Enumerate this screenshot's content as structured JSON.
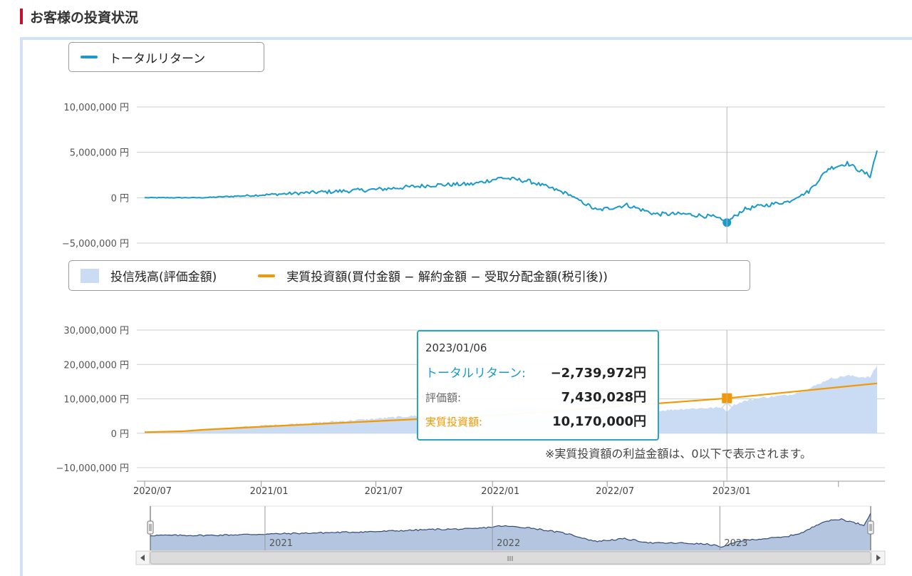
{
  "section": {
    "title": "お客様の投資状況"
  },
  "colors": {
    "accent_red": "#c8102e",
    "total_return": "#1a9acb",
    "valuation_area": "#c9dcf3",
    "invested": "#f39800",
    "navigator_fill": "#b4c6df",
    "navigator_line": "#33497a"
  },
  "legend_top": {
    "total_return": "トータルリターン"
  },
  "legend_bottom": {
    "valuation": "投信残高(評価金額)",
    "invested": "実質投資額(買付金額 − 解約金額 − 受取分配金額(税引後))"
  },
  "tooltip": {
    "date": "2023/01/06",
    "total_return_label": "トータルリターン:",
    "total_return_value": "−2,739,972円",
    "valuation_label": "評価額:",
    "valuation_value": "7,430,028円",
    "invested_label": "実質投資額:",
    "invested_value": "10,170,000円"
  },
  "note": "※実質投資額の利益金額は、0以下で表示されます。",
  "navigator": {
    "year_labels": [
      "2021",
      "2022",
      "2023"
    ],
    "scroll_grip": "III"
  },
  "chart_data": [
    {
      "type": "line",
      "x_range": [
        "2020/07/01",
        "2023/08/31"
      ],
      "y_ticks": [
        "10,000,000 円",
        "5,000,000 円",
        "0 円",
        "−5,000,000 円"
      ],
      "ylim": [
        -5000000,
        10000000
      ],
      "grid": true,
      "legend": "top-left",
      "highlight": {
        "x": "2023/01/06",
        "y": -2739972
      },
      "series": [
        {
          "name": "トータルリターン",
          "x": [
            "2020/07/01",
            "2020/10/01",
            "2021/01/01",
            "2021/04/01",
            "2021/07/01",
            "2021/10/01",
            "2021/12/01",
            "2022/01/15",
            "2022/03/01",
            "2022/05/01",
            "2022/06/15",
            "2022/08/01",
            "2022/09/15",
            "2022/11/01",
            "2022/12/15",
            "2023/01/06",
            "2023/02/01",
            "2023/03/01",
            "2023/04/15",
            "2023/05/15",
            "2023/06/15",
            "2023/07/15",
            "2023/08/01",
            "2023/08/20",
            "2023/08/31"
          ],
          "values": [
            0,
            0,
            300000,
            600000,
            900000,
            1400000,
            1500000,
            2200000,
            1800000,
            400000,
            -1400000,
            -800000,
            -1800000,
            -1800000,
            -2100000,
            -2739972,
            -1300000,
            -900000,
            -400000,
            700000,
            3200000,
            3800000,
            3100000,
            2400000,
            5200000
          ]
        }
      ]
    },
    {
      "type": "area",
      "x_range": [
        "2020/07/01",
        "2023/08/31"
      ],
      "x_ticks": [
        "2020/07",
        "2021/01",
        "2021/07",
        "2022/01",
        "2022/07",
        "2023/01"
      ],
      "y_ticks": [
        "30,000,000 円",
        "20,000,000 円",
        "10,000,000 円",
        "0 円",
        "−10,000,000 円"
      ],
      "ylim": [
        -10000000,
        30000000
      ],
      "grid": true,
      "legend": "top-left",
      "highlight": {
        "x": "2023/01/06",
        "valuation": 7430028,
        "invested": 10170000
      },
      "series": [
        {
          "name": "投信残高(評価金額)",
          "type": "area",
          "x": [
            "2020/07/01",
            "2020/09/01",
            "2020/10/01",
            "2021/01/01",
            "2021/04/01",
            "2021/07/01",
            "2021/10/01",
            "2021/12/01",
            "2022/01/15",
            "2022/03/01",
            "2022/05/01",
            "2022/06/15",
            "2022/08/01",
            "2022/09/15",
            "2022/11/01",
            "2022/12/15",
            "2023/01/06",
            "2023/02/01",
            "2023/03/01",
            "2023/04/15",
            "2023/05/15",
            "2023/06/15",
            "2023/07/15",
            "2023/08/01",
            "2023/08/20",
            "2023/08/31"
          ],
          "values": [
            300000,
            500000,
            1000000,
            2200000,
            3100000,
            4200000,
            5500000,
            6500000,
            7500000,
            7800000,
            7000000,
            5800000,
            6700000,
            6500000,
            7100000,
            7400000,
            7430028,
            9300000,
            10300000,
            11200000,
            12900000,
            15700000,
            16800000,
            16400000,
            16300000,
            19700000
          ]
        },
        {
          "name": "実質投資額(買付金額 − 解約金額 − 受取分配金額(税引後))",
          "type": "line",
          "x": [
            "2020/07/01",
            "2020/09/01",
            "2020/10/01",
            "2021/01/01",
            "2022/01/15",
            "2023/01/06",
            "2023/08/31"
          ],
          "values": [
            300000,
            600000,
            1000000,
            1900000,
            5300000,
            10170000,
            14500000
          ]
        }
      ]
    }
  ]
}
